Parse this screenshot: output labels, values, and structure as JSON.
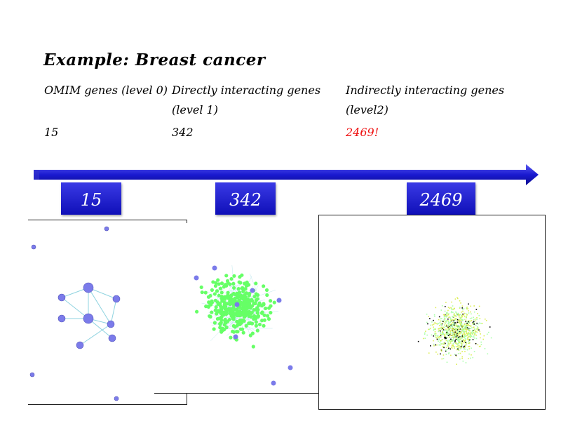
{
  "title": "Example: Breast cancer",
  "table": {
    "headers": [
      "OMIM genes (level 0)",
      "Directly interacting genes",
      "(level 1)",
      "Indirectly interacting genes",
      "(level2)"
    ],
    "values": [
      "15",
      "342",
      "2469!"
    ]
  },
  "timeline": {
    "labels": [
      "15",
      "342",
      "2469"
    ],
    "arrow_color": "#1515c4"
  },
  "networks": {
    "level0_node_color": "#7b7bea",
    "level1_node_color": "#66ff66",
    "level2_node_colors": [
      "#ddee55",
      "#aaffaa",
      "#000000"
    ]
  }
}
